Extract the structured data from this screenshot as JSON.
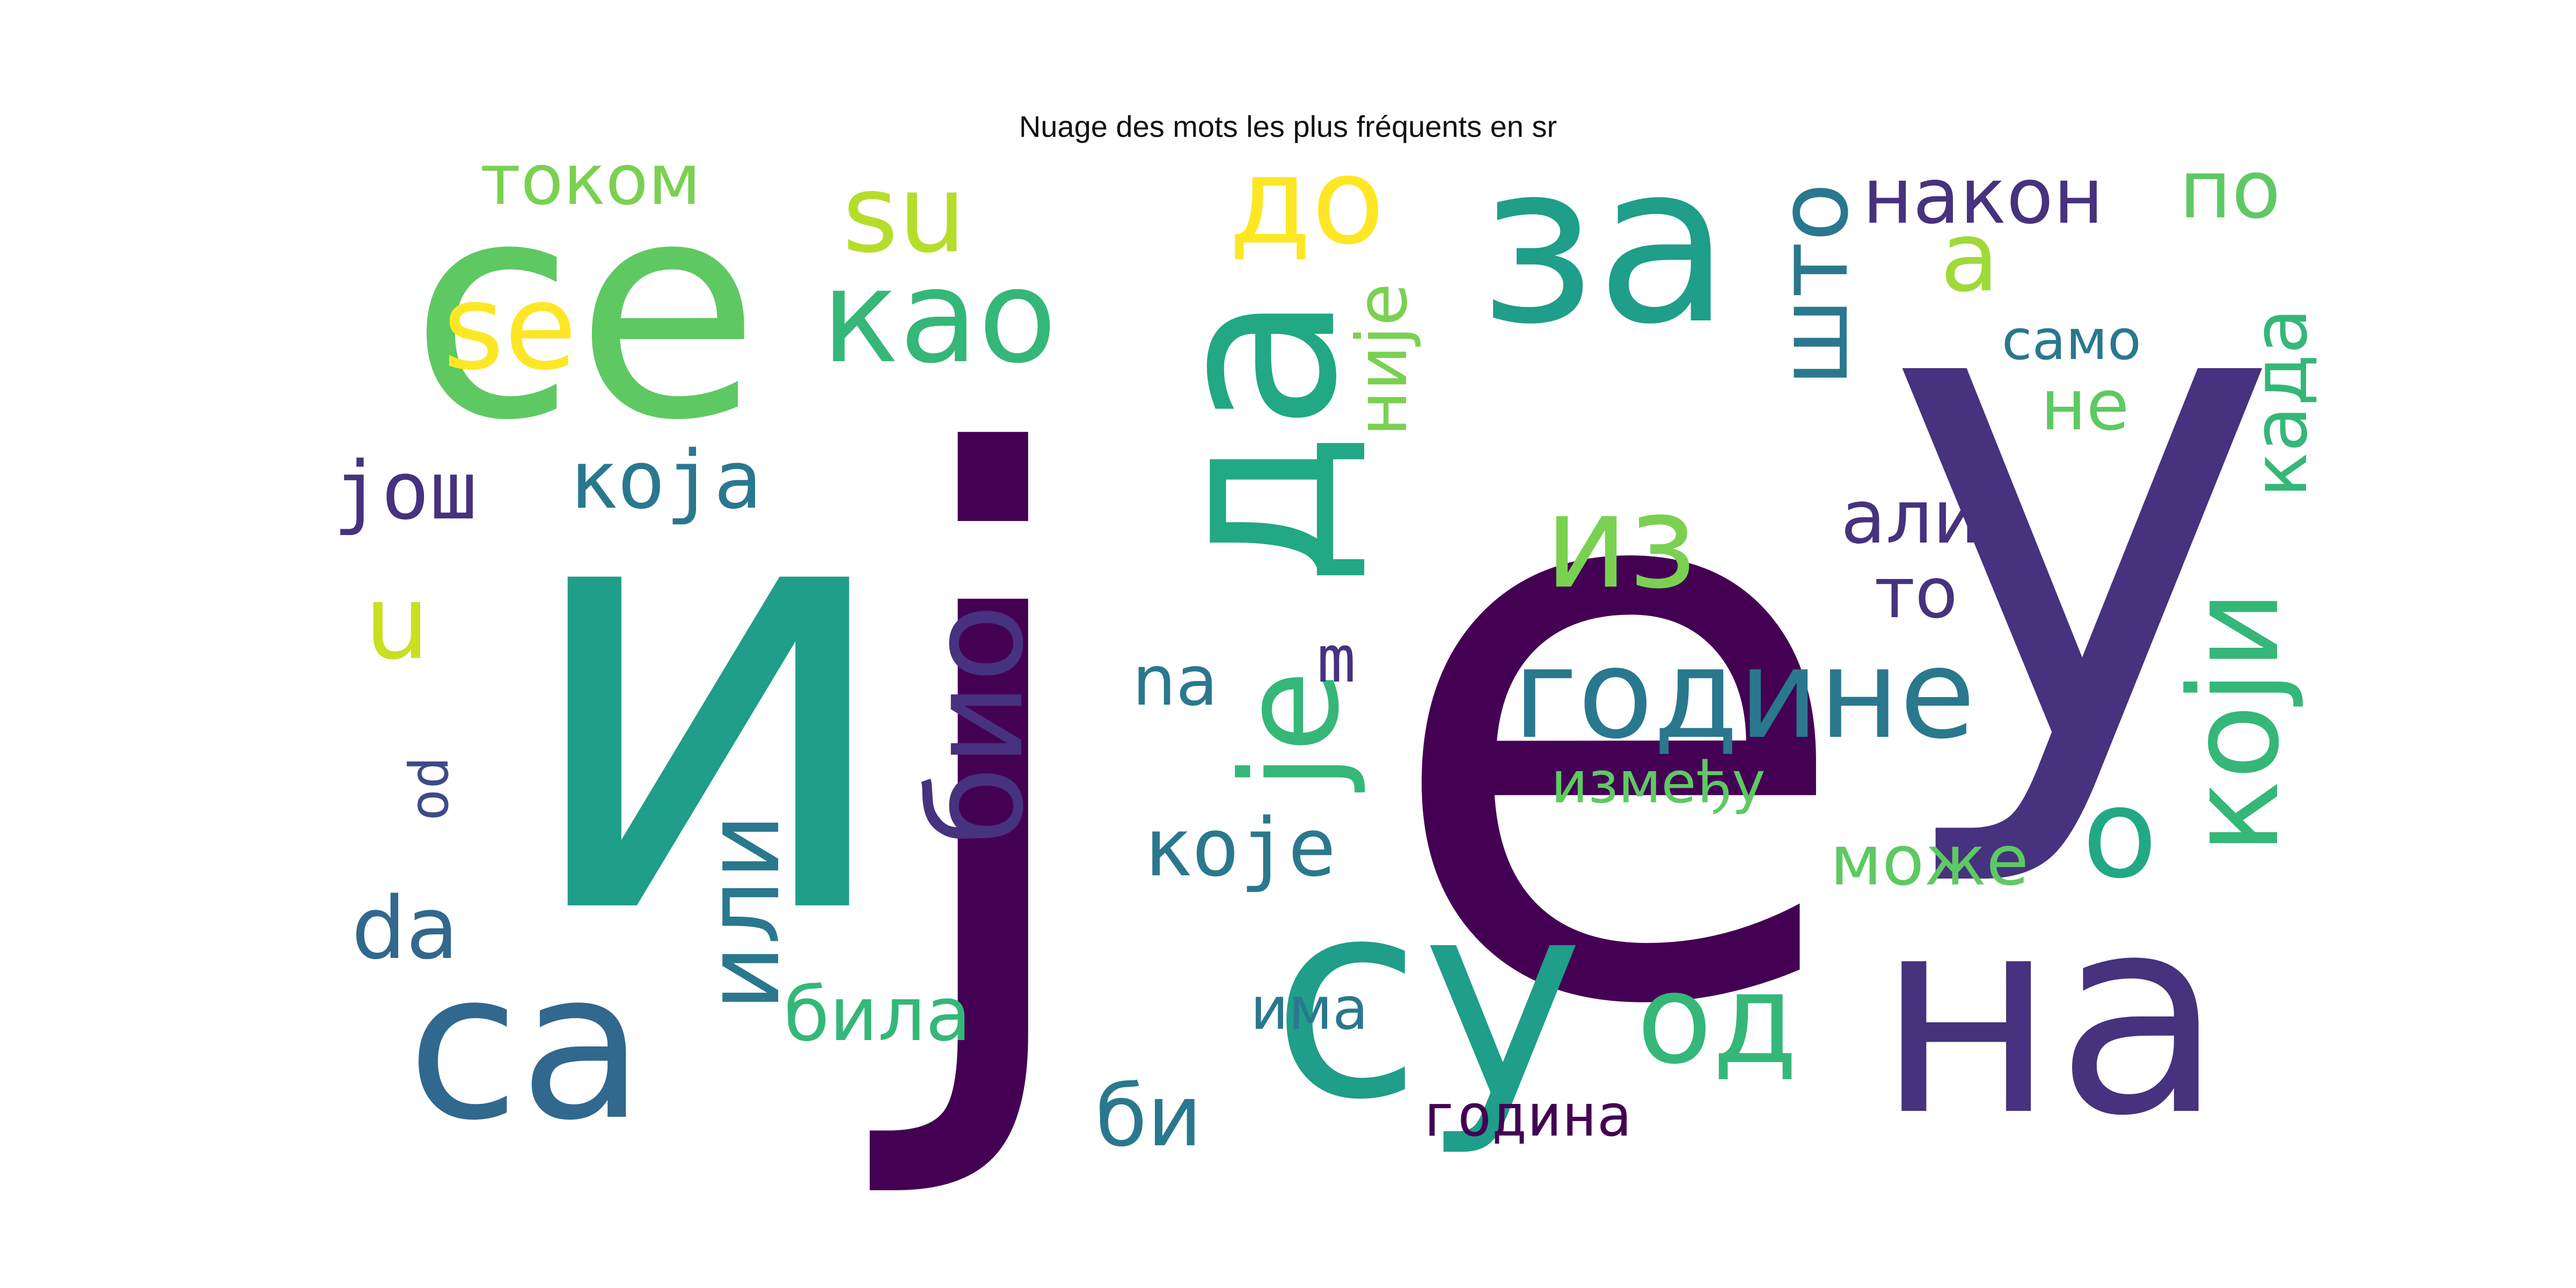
{
  "title": "Nuage des mots les plus fréquents en sr",
  "words": [
    {
      "text": "и",
      "color": "#1f9e89"
    },
    {
      "text": "ј",
      "color": "#440154"
    },
    {
      "text": "е",
      "color": "#440154"
    },
    {
      "text": "у",
      "color": "#46327e"
    },
    {
      "text": "се",
      "color": "#5ec962"
    },
    {
      "text": "за",
      "color": "#1f9e89"
    },
    {
      "text": "да",
      "color": "#22a884"
    },
    {
      "text": "на",
      "color": "#46327e"
    },
    {
      "text": "од",
      "color": "#35b779"
    },
    {
      "text": "су",
      "color": "#1f9e89"
    },
    {
      "text": "са",
      "color": "#31688e"
    },
    {
      "text": "је",
      "color": "#35b779"
    },
    {
      "text": "su",
      "color": "#b5de2b"
    },
    {
      "text": "se",
      "color": "#fde725"
    },
    {
      "text": "као",
      "color": "#35b779"
    },
    {
      "text": "до",
      "color": "#fde725"
    },
    {
      "text": "током",
      "color": "#7ad151"
    },
    {
      "text": "а",
      "color": "#a0da39"
    },
    {
      "text": "након",
      "color": "#46327e"
    },
    {
      "text": "по",
      "color": "#5ec962"
    },
    {
      "text": "што",
      "color": "#2a788e"
    },
    {
      "text": "није",
      "color": "#7ad151"
    },
    {
      "text": "само",
      "color": "#2a788e"
    },
    {
      "text": "не",
      "color": "#5ec962"
    },
    {
      "text": "када",
      "color": "#35b779"
    },
    {
      "text": "из",
      "color": "#7ad151"
    },
    {
      "text": "још",
      "color": "#46327e"
    },
    {
      "text": "која",
      "color": "#2a788e"
    },
    {
      "text": "u",
      "color": "#c8e020"
    },
    {
      "text": "али",
      "color": "#46327e"
    },
    {
      "text": "то",
      "color": "#46327e"
    },
    {
      "text": "године",
      "color": "#2a788e"
    },
    {
      "text": "који",
      "color": "#35b779"
    },
    {
      "text": "био",
      "color": "#46327e"
    },
    {
      "text": "na",
      "color": "#2a788e"
    },
    {
      "text": "m",
      "color": "#46327e"
    },
    {
      "text": "od",
      "color": "#3e4a89"
    },
    {
      "text": "између",
      "color": "#5ec962"
    },
    {
      "text": "или",
      "color": "#2a788e"
    },
    {
      "text": "о",
      "color": "#22a884"
    },
    {
      "text": "може",
      "color": "#5ec962"
    },
    {
      "text": "које",
      "color": "#2a788e"
    },
    {
      "text": "da",
      "color": "#31688e"
    },
    {
      "text": "била",
      "color": "#35b779"
    },
    {
      "text": "има",
      "color": "#2a788e"
    },
    {
      "text": "би",
      "color": "#2a788e"
    },
    {
      "text": "година",
      "color": "#440154"
    }
  ]
}
